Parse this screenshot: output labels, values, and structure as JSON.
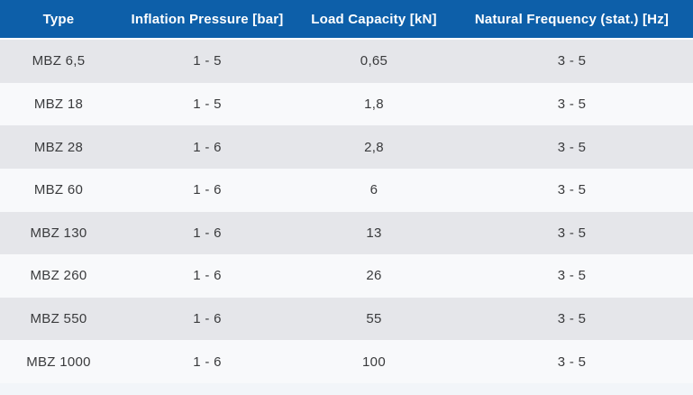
{
  "chart_data": {
    "type": "table",
    "columns": [
      "Type",
      "Inflation Pressure [bar]",
      "Load Capacity [kN]",
      "Natural Frequency (stat.) [Hz]"
    ],
    "rows": [
      [
        "MBZ 6,5",
        "1 - 5",
        "0,65",
        "3 - 5"
      ],
      [
        "MBZ 18",
        "1 - 5",
        "1,8",
        "3 - 5"
      ],
      [
        "MBZ 28",
        "1 - 6",
        "2,8",
        "3 - 5"
      ],
      [
        "MBZ 60",
        "1 - 6",
        "6",
        "3 - 5"
      ],
      [
        "MBZ 130",
        "1 - 6",
        "13",
        "3 - 5"
      ],
      [
        "MBZ 260",
        "1 - 6",
        "26",
        "3 - 5"
      ],
      [
        "MBZ 550",
        "1 - 6",
        "55",
        "3 - 5"
      ],
      [
        "MBZ 1000",
        "1 - 6",
        "100",
        "3 - 5"
      ]
    ]
  },
  "colors": {
    "header_bg": "#0d5fa9",
    "header_text": "#ffffff",
    "row_alt_bg": "#e5e6ea",
    "row_bg": "#f8f9fb",
    "cell_text": "#3a3b3d",
    "separator": "#fdfdfd",
    "footer_bg": "#f2f5f9"
  }
}
